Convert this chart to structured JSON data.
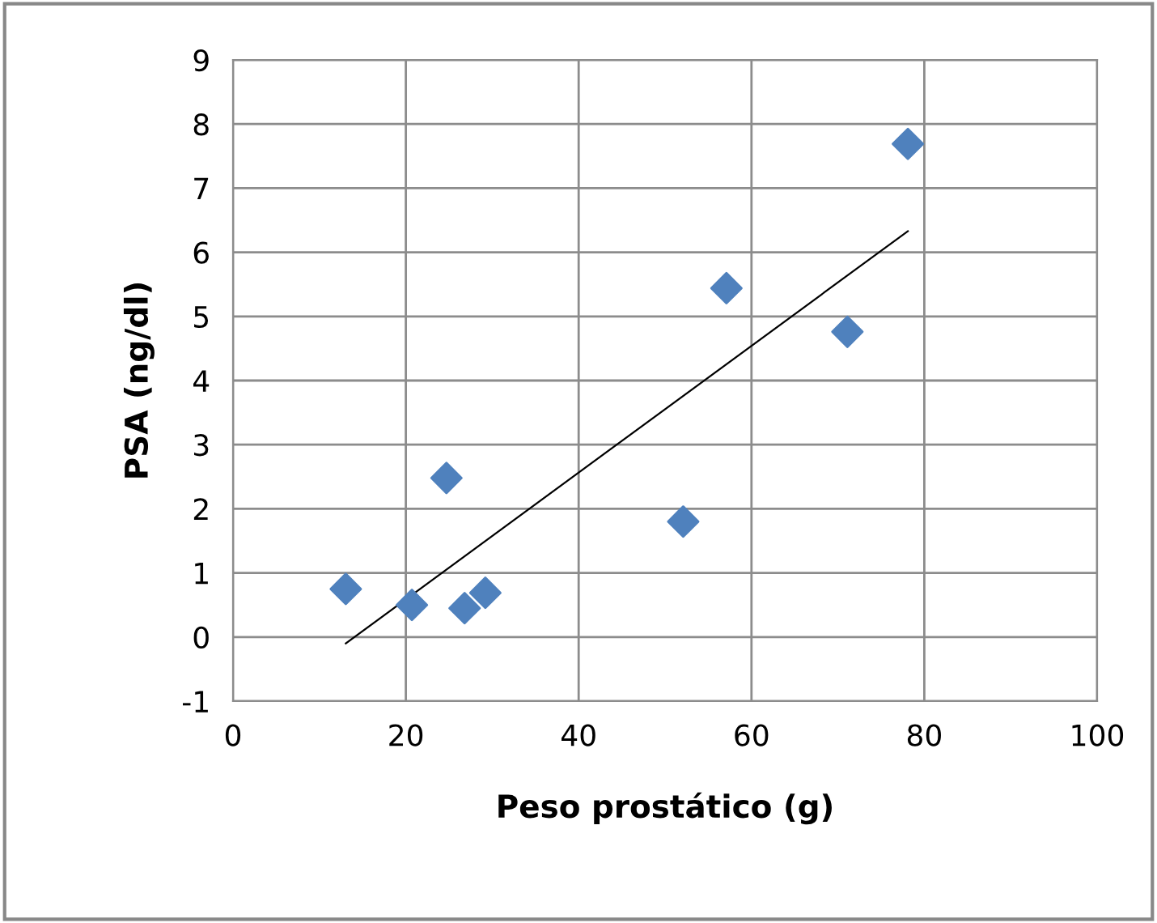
{
  "chart_data": {
    "type": "scatter",
    "xlabel": "Peso prostático (g)",
    "ylabel": "PSA (ng/dl)",
    "series": [
      {
        "color": "#4f81bd",
        "marker": "diamond",
        "x": [
          13.05,
          20.7,
          24.7,
          26.8,
          29.2,
          52.1,
          57.1,
          71.1,
          78.1
        ],
        "values": [
          0.75,
          0.5,
          2.48,
          0.45,
          0.69,
          1.8,
          5.44,
          4.76,
          7.69
        ]
      },
      {
        "type": "line",
        "color": "#000000",
        "marker": "none",
        "line_style": "solid",
        "x": [
          13.05,
          78.1
        ],
        "values": [
          -0.1,
          6.33
        ]
      }
    ],
    "xlim": [
      0,
      100
    ],
    "xticks": [
      0,
      20,
      40,
      60,
      80,
      100
    ],
    "ylim": [
      -1,
      9
    ],
    "yticks": [
      -1,
      0,
      1,
      2,
      3,
      4,
      5,
      6,
      7,
      8,
      9
    ],
    "grid": true,
    "legend": false
  }
}
